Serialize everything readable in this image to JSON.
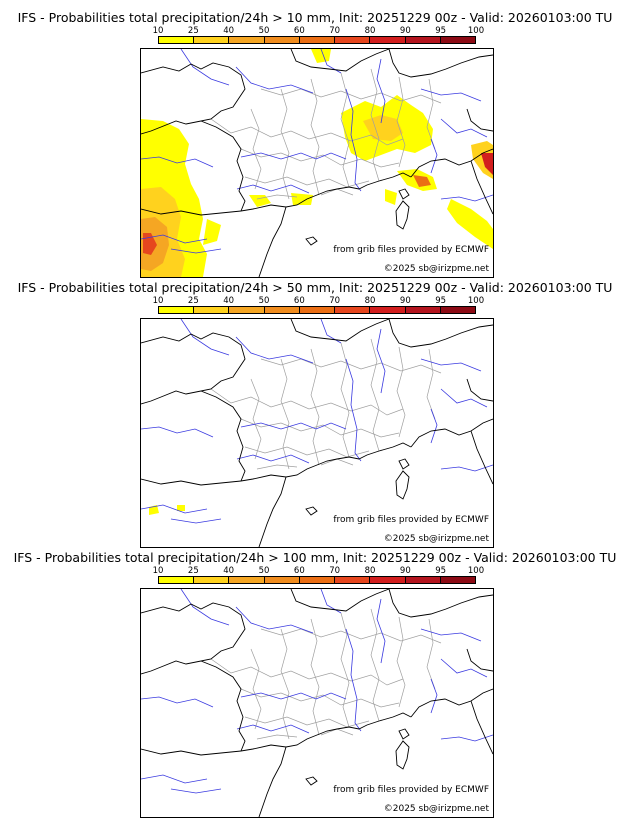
{
  "panels": [
    {
      "title": "IFS - Probabilities total precipitation/24h > 10 mm, Init: 20251229 00z - Valid: 20260103:00 TU",
      "has_precip": "strong"
    },
    {
      "title": "IFS - Probabilities total precipitation/24h > 50 mm, Init: 20251229 00z - Valid: 20260103:00 TU",
      "has_precip": "weak"
    },
    {
      "title": "IFS - Probabilities total precipitation/24h > 100 mm, Init: 20251229 00z - Valid: 20260103:00 TU",
      "has_precip": "none"
    }
  ],
  "legend": {
    "ticks": [
      "10",
      "25",
      "40",
      "50",
      "60",
      "70",
      "80",
      "90",
      "95",
      "100"
    ],
    "colors": [
      "#ffff00",
      "#ffd21e",
      "#f5a623",
      "#f08c1e",
      "#eb6e14",
      "#e6461e",
      "#d21e1e",
      "#b4141e",
      "#8c0a14",
      "#5a0a0a"
    ]
  },
  "credits": {
    "source": "from grib files provided by ECMWF",
    "copyright": "©2025 sb@irizpme.net"
  },
  "colors": {
    "rivers": "#3a3ae0",
    "regions": "#a0a0a0",
    "coast": "#000000"
  }
}
